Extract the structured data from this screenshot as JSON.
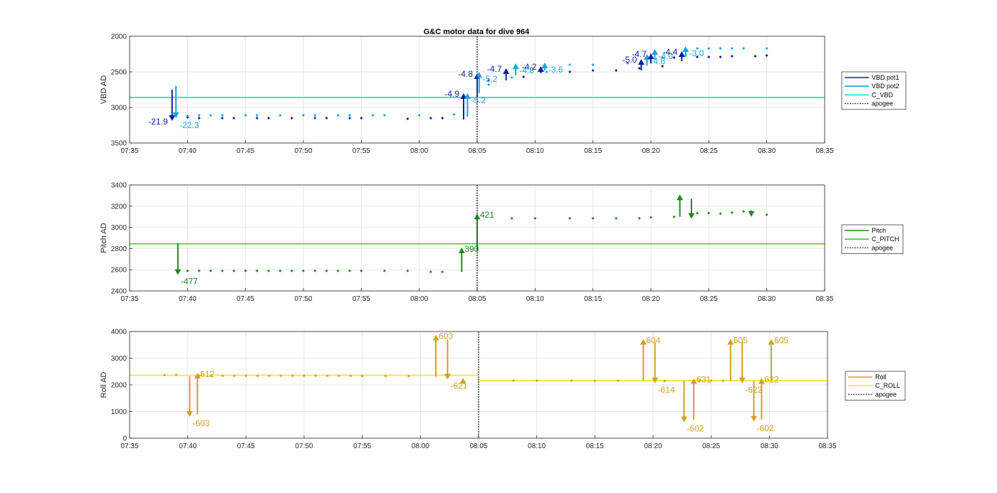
{
  "colors": {
    "pot1": "#0b1fa6",
    "pot2": "#1aa3dc",
    "cvbd": "#17e0e6",
    "pitch": "#1e8a1e",
    "cpitch": "#33cc33",
    "roll": "#d4a020",
    "croll": "#f2e630",
    "apogee": "#444444"
  },
  "chart_data": [
    {
      "type": "line",
      "title": "G&C motor data for dive 964",
      "ylabel": "VBD AD",
      "xlim": [
        "07:35",
        "08:35"
      ],
      "ylim": [
        3500,
        2000
      ],
      "y_reversed": true,
      "xticks": [
        "07:35",
        "07:40",
        "07:45",
        "07:50",
        "07:55",
        "08:00",
        "08:05",
        "08:10",
        "08:15",
        "08:20",
        "08:25",
        "08:30",
        "08:35"
      ],
      "yticks": [
        "2000",
        "2500",
        "3000",
        "3500"
      ],
      "grid": true,
      "legend_position": "right",
      "legend": [
        "VBD pot1",
        "VBD pot2",
        "C_VBD",
        "apogee"
      ],
      "c_vbd": 2860,
      "apogee": "08:05",
      "series": [
        {
          "name": "VBD pot1",
          "x": [
            "07:40",
            "07:41",
            "07:43",
            "07:44",
            "07:46",
            "07:47",
            "07:49",
            "07:51",
            "07:52",
            "07:54",
            "07:55",
            "07:59",
            "08:01",
            "08:02",
            "08:06",
            "08:09",
            "08:13",
            "08:15",
            "08:17",
            "08:19",
            "08:21",
            "08:22",
            "08:24",
            "08:25",
            "08:26",
            "08:27",
            "08:29",
            "08:30"
          ],
          "y": [
            3140,
            3150,
            3150,
            3150,
            3150,
            3150,
            3150,
            3150,
            3150,
            3150,
            3150,
            3160,
            3150,
            3150,
            2620,
            2570,
            2500,
            2480,
            2480,
            2450,
            2420,
            2300,
            2290,
            2290,
            2290,
            2280,
            2280,
            2270
          ]
        },
        {
          "name": "VBD pot2",
          "x": [
            "07:39",
            "07:40",
            "07:41",
            "07:42",
            "07:43",
            "07:45",
            "07:46",
            "07:48",
            "07:50",
            "07:51",
            "07:53",
            "07:54",
            "07:56",
            "07:57",
            "08:00",
            "08:03",
            "08:06",
            "08:08",
            "08:11",
            "08:13",
            "08:15",
            "08:18",
            "08:21",
            "08:23",
            "08:24",
            "08:25",
            "08:26",
            "08:27",
            "08:28",
            "08:30"
          ],
          "y": [
            3120,
            3120,
            3110,
            3110,
            3110,
            3110,
            3110,
            3110,
            3110,
            3110,
            3110,
            3110,
            3110,
            3110,
            3110,
            3100,
            2680,
            2580,
            2500,
            2400,
            2400,
            2380,
            2300,
            2260,
            2170,
            2170,
            2170,
            2170,
            2170,
            2170
          ]
        }
      ],
      "moves": [
        {
          "x": "07:38:40",
          "from": 2750,
          "to": 3190,
          "label": "-21.9",
          "series": "VBD pot1"
        },
        {
          "x": "07:39:00",
          "from": 2700,
          "to": 3150,
          "label": "-22.3",
          "series": "VBD pot2"
        },
        {
          "x": "08:03:50",
          "from": 3170,
          "to": 2800,
          "label": "-4.9",
          "series": "VBD pot1"
        },
        {
          "x": "08:04:10",
          "from": 3130,
          "to": 2800,
          "label": "-5.2",
          "series": "VBD pot2"
        },
        {
          "x": "08:05:00",
          "from": 2860,
          "to": 2520,
          "label": "-4.8",
          "series": "VBD pot1"
        },
        {
          "x": "08:05:10",
          "from": 2800,
          "to": 2500,
          "label": "-5.2",
          "series": "VBD pot2"
        },
        {
          "x": "08:07:30",
          "from": 2620,
          "to": 2450,
          "label": "-4.7",
          "series": "VBD pot1"
        },
        {
          "x": "08:08:20",
          "from": 2550,
          "to": 2380,
          "label": "-4.8",
          "series": "VBD pot2"
        },
        {
          "x": "08:10:30",
          "from": 2520,
          "to": 2420,
          "label": "-4.2",
          "series": "VBD pot1"
        },
        {
          "x": "08:10:50",
          "from": 2480,
          "to": 2370,
          "label": "-3.6",
          "series": "VBD pot2"
        },
        {
          "x": "08:19:10",
          "from": 2480,
          "to": 2320,
          "label": "-5.0",
          "series": "VBD pot1"
        },
        {
          "x": "08:19:40",
          "from": 2410,
          "to": 2250,
          "label": "-4.8",
          "series": "VBD pot2"
        },
        {
          "x": "08:20:00",
          "from": 2380,
          "to": 2240,
          "label": "-4.7",
          "series": "VBD pot1"
        },
        {
          "x": "08:20:20",
          "from": 2330,
          "to": 2180,
          "label": "-4.0",
          "series": "VBD pot2"
        },
        {
          "x": "08:22:40",
          "from": 2350,
          "to": 2210,
          "label": "-4.4",
          "series": "VBD pot1"
        },
        {
          "x": "08:23:00",
          "from": 2290,
          "to": 2140,
          "label": "-3.0",
          "series": "VBD pot2"
        }
      ]
    },
    {
      "type": "line",
      "ylabel": "Pitch AD",
      "xlim": [
        "07:35",
        "08:35"
      ],
      "ylim": [
        2400,
        3400
      ],
      "xticks": [
        "07:35",
        "07:40",
        "07:45",
        "07:50",
        "07:55",
        "08:00",
        "08:05",
        "08:10",
        "08:15",
        "08:20",
        "08:25",
        "08:30",
        "08:35"
      ],
      "yticks": [
        "2400",
        "2600",
        "2800",
        "3000",
        "3200",
        "3400"
      ],
      "grid": true,
      "legend_position": "right",
      "legend": [
        "Pitch",
        "C_PITCH",
        "apogee"
      ],
      "c_pitch": 2845,
      "apogee": "08:05",
      "series": [
        {
          "name": "Pitch",
          "x": [
            "07:40",
            "07:41",
            "07:42",
            "07:43",
            "07:44",
            "07:45",
            "07:46",
            "07:47",
            "07:48",
            "07:49",
            "07:50",
            "07:51",
            "07:52",
            "07:53",
            "07:54",
            "07:55",
            "07:57",
            "07:59",
            "08:01",
            "08:02",
            "08:08",
            "08:10",
            "08:13",
            "08:15",
            "08:17",
            "08:19",
            "08:20",
            "08:22",
            "08:24",
            "08:25",
            "08:26",
            "08:27",
            "08:28",
            "08:30"
          ],
          "y": [
            2590,
            2590,
            2590,
            2590,
            2590,
            2590,
            2590,
            2590,
            2590,
            2590,
            2590,
            2590,
            2590,
            2590,
            2590,
            2590,
            2590,
            2590,
            2580,
            2580,
            3085,
            3085,
            3085,
            3085,
            3085,
            3085,
            3095,
            3100,
            3135,
            3135,
            3130,
            3140,
            3150,
            3120
          ]
        }
      ],
      "moves": [
        {
          "x": "07:39:10",
          "from": 2850,
          "to": 2550,
          "label": "-477"
        },
        {
          "x": "08:03:40",
          "from": 2580,
          "to": 2810,
          "label": "390"
        },
        {
          "x": "08:05:00",
          "from": 2780,
          "to": 3130,
          "label": "421"
        },
        {
          "x": "08:22:30",
          "from": 3100,
          "to": 3310,
          "label": ""
        },
        {
          "x": "08:23:30",
          "from": 3270,
          "to": 3080,
          "label": ""
        },
        {
          "x": "08:28:40",
          "from": 3160,
          "to": 3100,
          "label": ""
        }
      ]
    },
    {
      "type": "line",
      "ylabel": "Roll AD",
      "xlim": [
        "07:35",
        "08:35"
      ],
      "ylim": [
        0,
        4000
      ],
      "xticks": [
        "07:35",
        "07:40",
        "07:45",
        "07:50",
        "07:55",
        "08:00",
        "08:05",
        "08:10",
        "08:15",
        "08:20",
        "08:25",
        "08:30",
        "08:35"
      ],
      "yticks": [
        "0",
        "1000",
        "2000",
        "3000",
        "4000"
      ],
      "grid": true,
      "legend_position": "right",
      "legend": [
        "Roll",
        "C_ROLL",
        "apogee"
      ],
      "c_roll_before": 2360,
      "c_roll_after": 2160,
      "apogee": "08:05",
      "series": [
        {
          "name": "Roll",
          "x": [
            "07:38",
            "07:39",
            "07:41",
            "07:42",
            "07:43",
            "07:44",
            "07:45",
            "07:46",
            "07:47",
            "07:48",
            "07:49",
            "07:50",
            "07:51",
            "07:52",
            "07:53",
            "07:54",
            "07:55",
            "07:57",
            "07:59",
            "08:08",
            "08:10",
            "08:13",
            "08:15",
            "08:17",
            "08:21",
            "08:24",
            "08:25",
            "08:26"
          ],
          "y": [
            2370,
            2380,
            2350,
            2350,
            2340,
            2340,
            2340,
            2340,
            2340,
            2340,
            2340,
            2340,
            2340,
            2340,
            2340,
            2340,
            2330,
            2330,
            2330,
            2160,
            2160,
            2160,
            2160,
            2160,
            2150,
            2150,
            2160,
            2160
          ]
        }
      ],
      "moves": [
        {
          "x": "07:40:10",
          "from": 2320,
          "to": 800,
          "label": "-603"
        },
        {
          "x": "07:40:50",
          "from": 900,
          "to": 2450,
          "label": "612"
        },
        {
          "x": "08:01:20",
          "from": 2300,
          "to": 3880,
          "label": "603"
        },
        {
          "x": "08:02:20",
          "from": 3700,
          "to": 2200,
          "label": "-621"
        },
        {
          "x": "08:03:40",
          "from": 2100,
          "to": 2260,
          "label": ""
        },
        {
          "x": "08:19:10",
          "from": 2150,
          "to": 3720,
          "label": "604"
        },
        {
          "x": "08:20:10",
          "from": 3600,
          "to": 2060,
          "label": "-614"
        },
        {
          "x": "08:22:40",
          "from": 2150,
          "to": 600,
          "label": "-602"
        },
        {
          "x": "08:23:30",
          "from": 700,
          "to": 2250,
          "label": "631"
        },
        {
          "x": "08:26:40",
          "from": 2150,
          "to": 3720,
          "label": "605"
        },
        {
          "x": "08:27:40",
          "from": 3600,
          "to": 2060,
          "label": "-622"
        },
        {
          "x": "08:28:40",
          "from": 2150,
          "to": 620,
          "label": "-602"
        },
        {
          "x": "08:29:20",
          "from": 700,
          "to": 2250,
          "label": "622"
        },
        {
          "x": "08:30:10",
          "from": 2150,
          "to": 3720,
          "label": "605"
        }
      ]
    }
  ]
}
